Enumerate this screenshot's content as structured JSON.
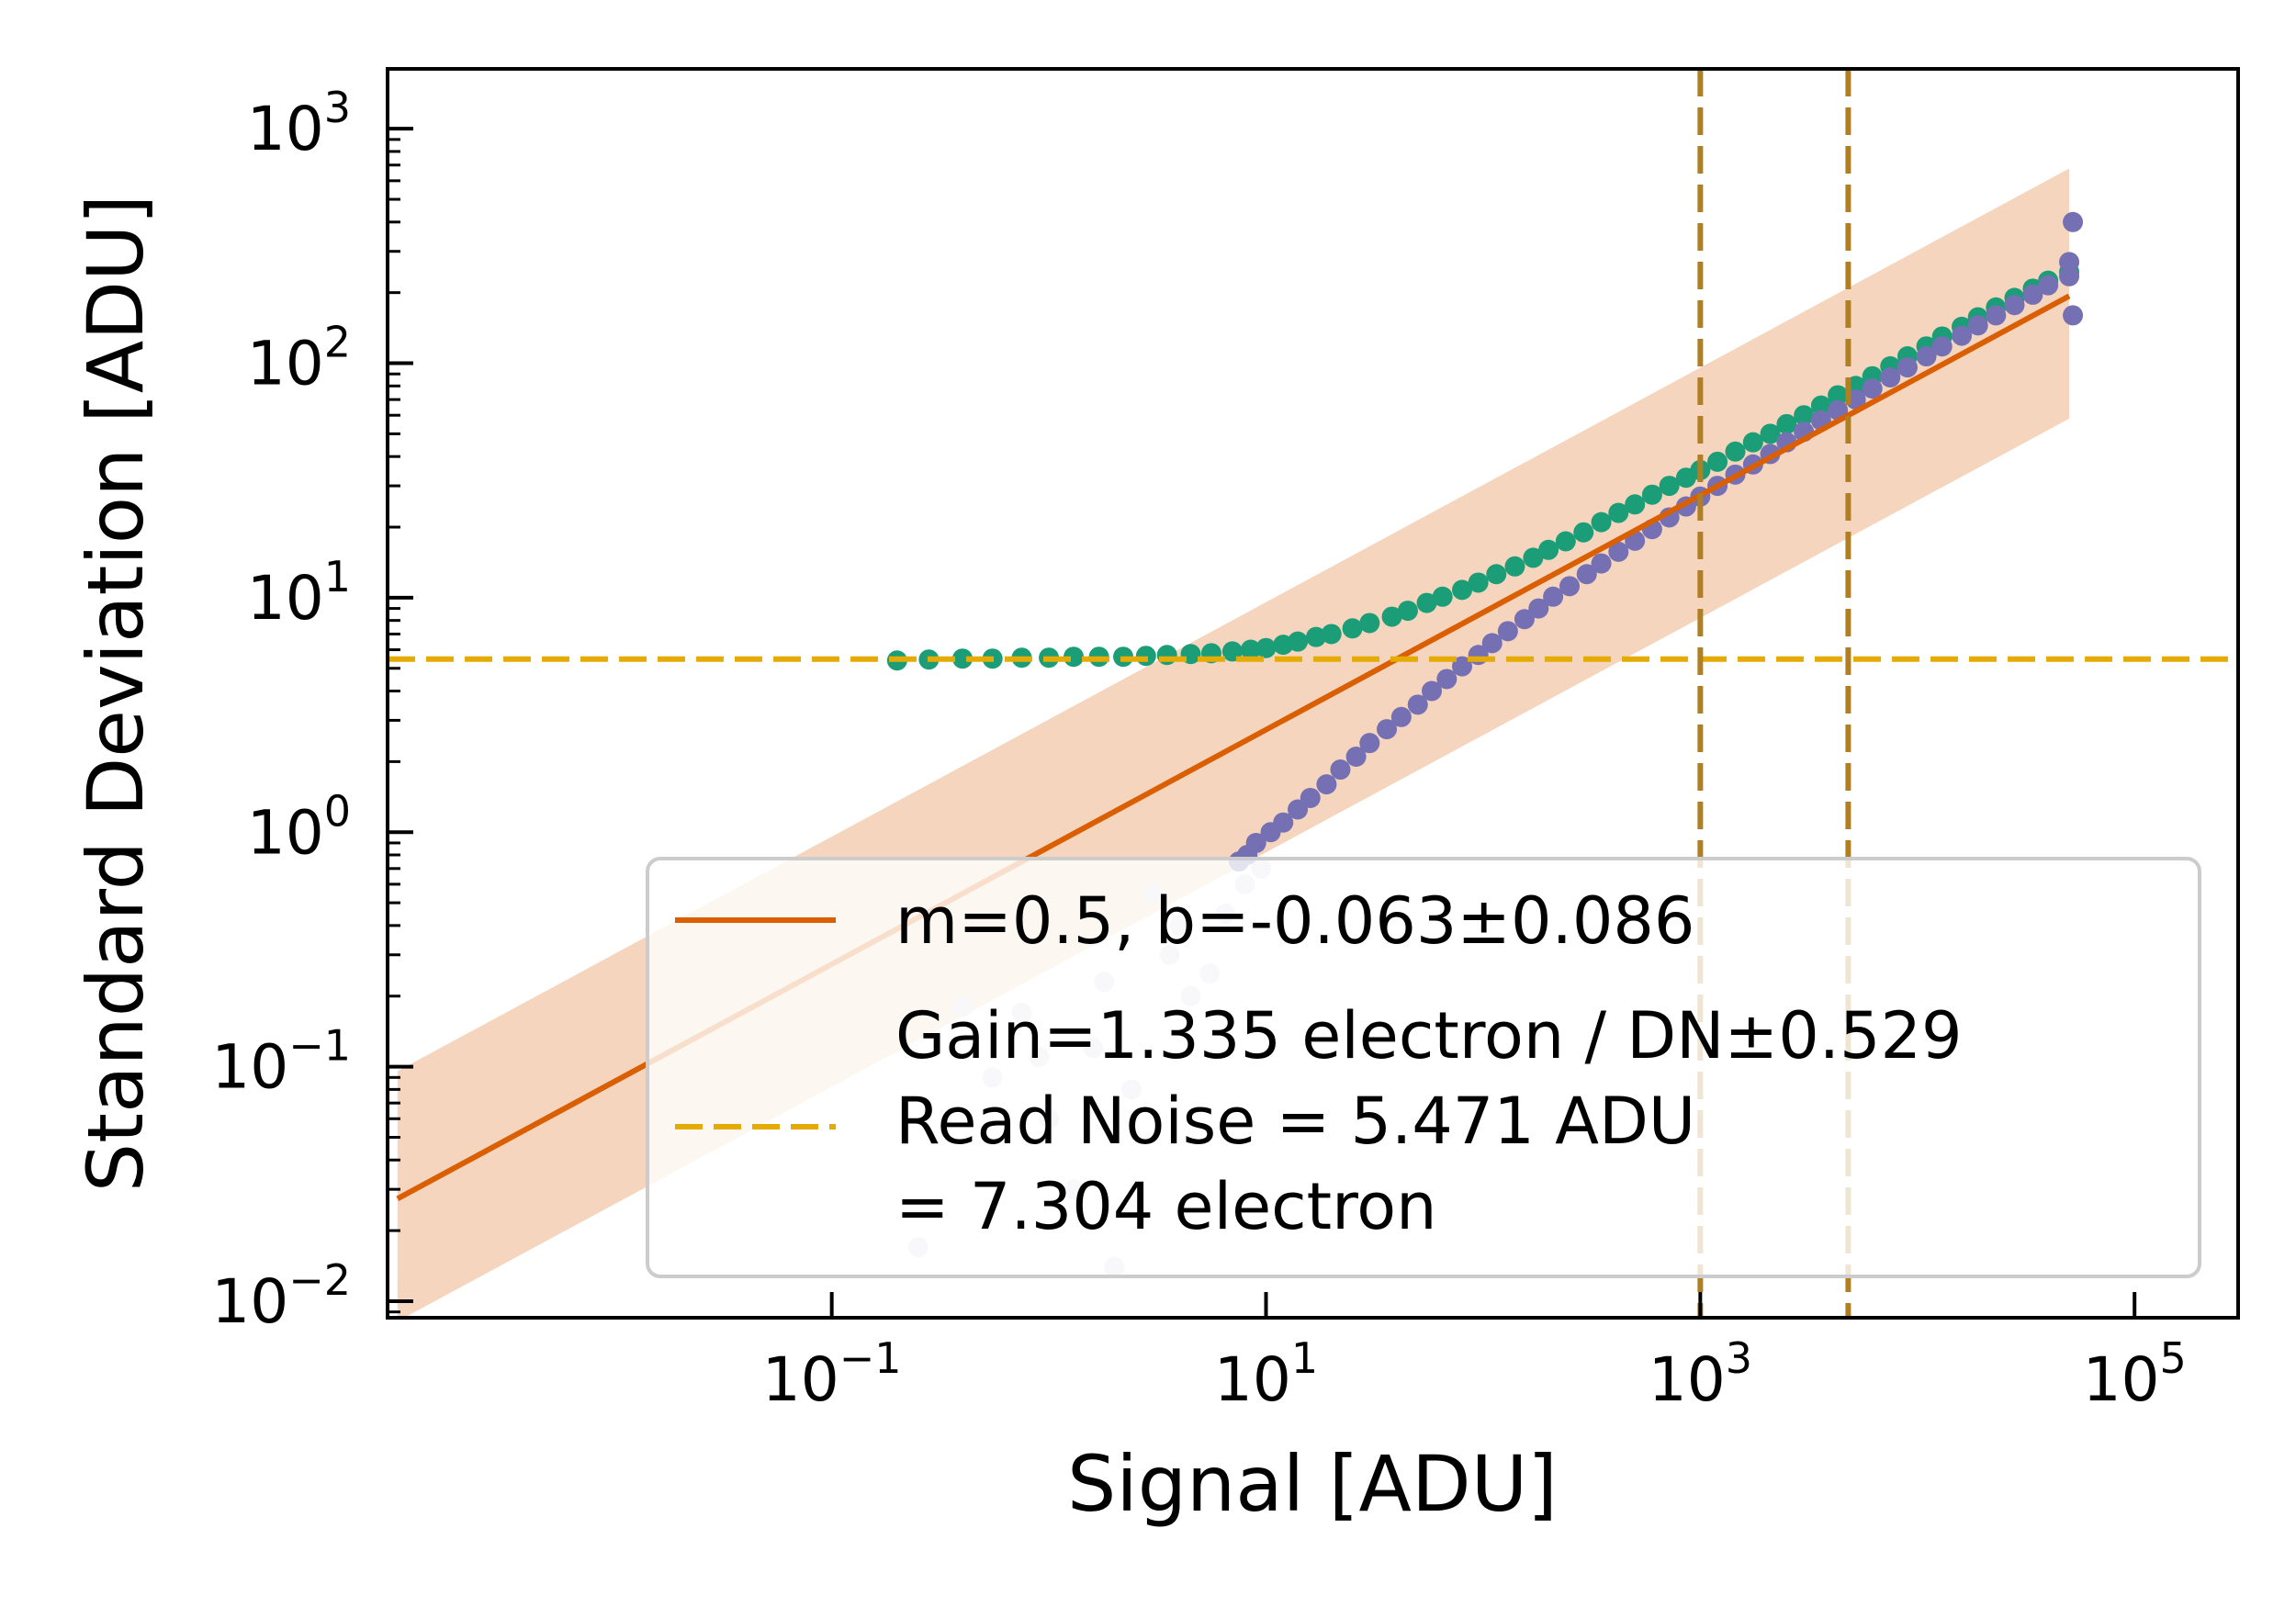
{
  "chart_data": {
    "type": "scatter",
    "title": "",
    "xlabel": "Signal [ADU]",
    "ylabel": "Standard Deviation [ADU]",
    "xscale": "log",
    "yscale": "log",
    "xlim": [
      0.0009,
      300000
    ],
    "ylim": [
      0.0085,
      1800
    ],
    "grid": false,
    "legend_position": "lower right",
    "x_ticks": [
      {
        "value": 0.1,
        "base": "10",
        "exp": "−1"
      },
      {
        "value": 10,
        "base": "10",
        "exp": "1"
      },
      {
        "value": 1000,
        "base": "10",
        "exp": "3"
      },
      {
        "value": 100000,
        "base": "10",
        "exp": "5"
      }
    ],
    "y_ticks": [
      {
        "value": 0.01,
        "base": "10",
        "exp": "−2"
      },
      {
        "value": 0.1,
        "base": "10",
        "exp": "−1"
      },
      {
        "value": 1,
        "base": "10",
        "exp": "0"
      },
      {
        "value": 10,
        "base": "10",
        "exp": "1"
      },
      {
        "value": 100,
        "base": "10",
        "exp": "2"
      },
      {
        "value": 1000,
        "base": "10",
        "exp": "3"
      }
    ],
    "colors": {
      "fit": "#d95f02",
      "band": "#f5d5bd",
      "read_noise": "#e6ab02",
      "vlines": "#b07f24",
      "total_noise": "#1b9e77",
      "shot_noise": "#7570b3",
      "shot_noise_faint": "#dcdcec"
    },
    "fit_line": {
      "m": 0.5,
      "b": -0.063,
      "b_err": 0.086,
      "x_range": [
        0.001,
        50000
      ]
    },
    "read_noise_level": 5.471,
    "vlines": [
      1000,
      4800
    ],
    "legend": {
      "fit_label": "m=0.5, b=-0.063±0.086",
      "gain_label": "Gain=1.335 electron / DN±0.529",
      "read_noise_label_1": "Read Noise = 5.471 ADU",
      "read_noise_label_2": "= 7.304 electron"
    },
    "series": [
      {
        "label_hidden": "total noise",
        "points": [
          [
            0.2,
            5.4
          ],
          [
            0.28,
            5.45
          ],
          [
            0.4,
            5.5
          ],
          [
            0.55,
            5.5
          ],
          [
            0.75,
            5.55
          ],
          [
            1.0,
            5.55
          ],
          [
            1.3,
            5.6
          ],
          [
            1.7,
            5.6
          ],
          [
            2.2,
            5.6
          ],
          [
            2.8,
            5.65
          ],
          [
            3.5,
            5.7
          ],
          [
            4.5,
            5.75
          ],
          [
            5.6,
            5.8
          ],
          [
            7,
            5.9
          ],
          [
            8.5,
            6.0
          ],
          [
            10,
            6.1
          ],
          [
            12,
            6.3
          ],
          [
            14,
            6.5
          ],
          [
            17,
            6.8
          ],
          [
            20,
            7.0
          ],
          [
            25,
            7.4
          ],
          [
            30,
            7.8
          ],
          [
            38,
            8.3
          ],
          [
            45,
            8.8
          ],
          [
            55,
            9.5
          ],
          [
            65,
            10.1
          ],
          [
            80,
            10.8
          ],
          [
            95,
            11.6
          ],
          [
            115,
            12.6
          ],
          [
            140,
            13.6
          ],
          [
            170,
            14.8
          ],
          [
            200,
            16.0
          ],
          [
            240,
            17.4
          ],
          [
            290,
            19.0
          ],
          [
            350,
            21.0
          ],
          [
            420,
            23.0
          ],
          [
            500,
            25.0
          ],
          [
            600,
            27.5
          ],
          [
            720,
            30
          ],
          [
            860,
            32.5
          ],
          [
            1000,
            35
          ],
          [
            1200,
            38
          ],
          [
            1450,
            42
          ],
          [
            1750,
            46
          ],
          [
            2100,
            50
          ],
          [
            2500,
            55
          ],
          [
            3000,
            60
          ],
          [
            3600,
            66
          ],
          [
            4300,
            73
          ],
          [
            5200,
            80
          ],
          [
            6200,
            88
          ],
          [
            7500,
            97
          ],
          [
            9000,
            107
          ],
          [
            11000,
            118
          ],
          [
            13000,
            130
          ],
          [
            16000,
            143
          ],
          [
            19000,
            157
          ],
          [
            23000,
            173
          ],
          [
            28000,
            190
          ],
          [
            34000,
            208
          ],
          [
            40000,
            225
          ],
          [
            50000,
            245
          ]
        ]
      },
      {
        "label_hidden": "shot noise",
        "points": [
          [
            7.5,
            0.75
          ],
          [
            8.2,
            0.8
          ],
          [
            9,
            0.9
          ],
          [
            10.5,
            1.0
          ],
          [
            12,
            1.1
          ],
          [
            14,
            1.25
          ],
          [
            16,
            1.4
          ],
          [
            19,
            1.6
          ],
          [
            22,
            1.85
          ],
          [
            26,
            2.1
          ],
          [
            30,
            2.4
          ],
          [
            36,
            2.75
          ],
          [
            42,
            3.1
          ],
          [
            50,
            3.5
          ],
          [
            58,
            4.0
          ],
          [
            68,
            4.5
          ],
          [
            80,
            5.1
          ],
          [
            95,
            5.7
          ],
          [
            110,
            6.4
          ],
          [
            130,
            7.2
          ],
          [
            155,
            8.1
          ],
          [
            180,
            9.0
          ],
          [
            210,
            10.1
          ],
          [
            250,
            11.2
          ],
          [
            300,
            12.6
          ],
          [
            350,
            14.0
          ],
          [
            420,
            15.7
          ],
          [
            500,
            17.5
          ],
          [
            600,
            19.6
          ],
          [
            720,
            22
          ],
          [
            860,
            24.5
          ],
          [
            1000,
            27
          ],
          [
            1200,
            30
          ],
          [
            1450,
            33.5
          ],
          [
            1750,
            37
          ],
          [
            2100,
            41
          ],
          [
            2500,
            46
          ],
          [
            3000,
            51
          ],
          [
            3600,
            57
          ],
          [
            4300,
            63
          ],
          [
            5200,
            70
          ],
          [
            6200,
            78
          ],
          [
            7500,
            87
          ],
          [
            9000,
            96
          ],
          [
            11000,
            107
          ],
          [
            13000,
            118
          ],
          [
            16000,
            131
          ],
          [
            19000,
            145
          ],
          [
            23000,
            160
          ],
          [
            28000,
            177
          ],
          [
            34000,
            196
          ],
          [
            40000,
            215
          ],
          [
            50000,
            235
          ],
          [
            50000,
            270
          ],
          [
            52000,
            160
          ],
          [
            52000,
            400
          ]
        ]
      },
      {
        "label_hidden": "shot noise (low signal)",
        "points": [
          [
            0.25,
            0.017
          ],
          [
            0.4,
            0.18
          ],
          [
            0.55,
            0.09
          ],
          [
            0.75,
            0.17
          ],
          [
            1.0,
            0.06
          ],
          [
            1.3,
            0.03
          ],
          [
            1.6,
            0.12
          ],
          [
            2.0,
            0.014
          ],
          [
            2.4,
            0.08
          ],
          [
            3.0,
            0.55
          ],
          [
            3.6,
            0.3
          ],
          [
            4.5,
            0.2
          ],
          [
            5.5,
            0.25
          ],
          [
            6.5,
            0.45
          ],
          [
            8,
            0.6
          ],
          [
            9.5,
            0.7
          ],
          [
            1.8,
            0.23
          ],
          [
            4.0,
            0.4
          ],
          [
            0.9,
            0.11
          ]
        ]
      }
    ]
  }
}
